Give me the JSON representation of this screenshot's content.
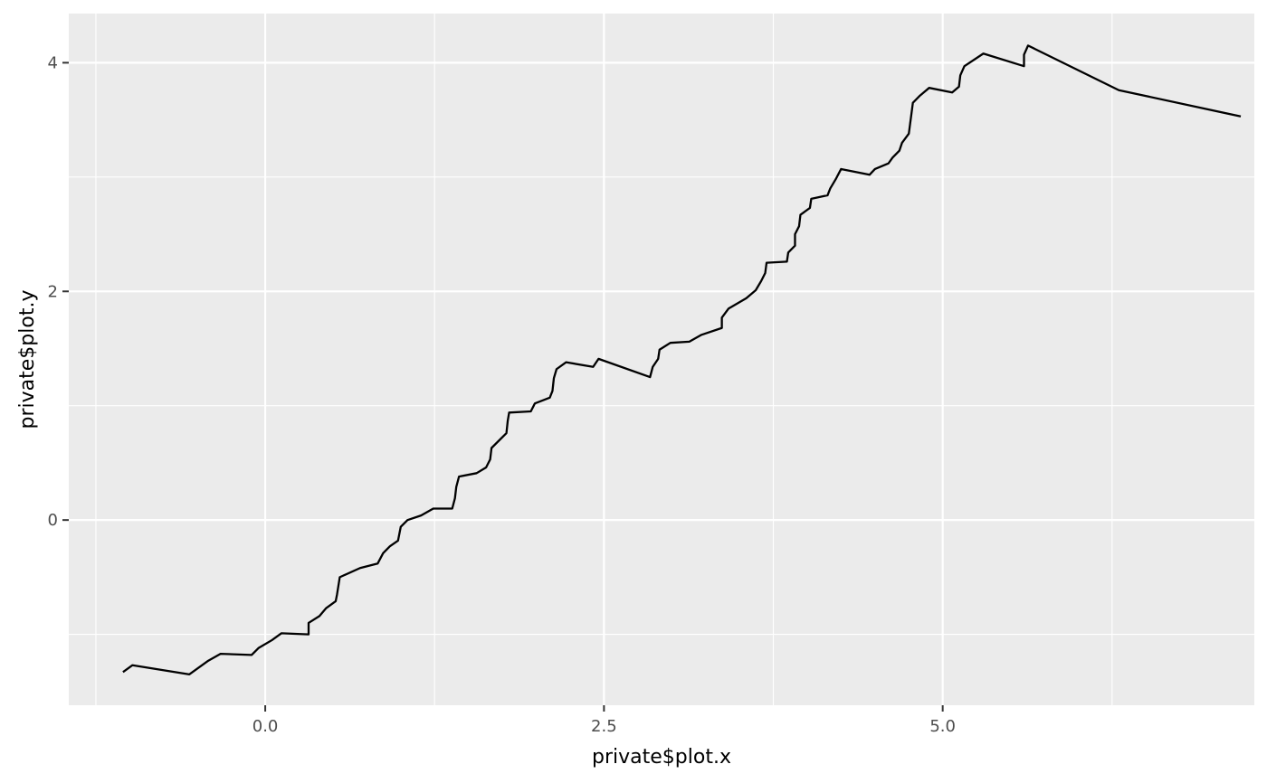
{
  "chart_data": {
    "type": "line",
    "title": "",
    "xlabel": "private$plot.x",
    "ylabel": "private$plot.y",
    "xlim": [
      -1.45,
      7.3
    ],
    "ylim": [
      -1.62,
      4.43
    ],
    "x_ticks": [
      0.0,
      2.5,
      5.0
    ],
    "x_tick_labels": [
      "0.0",
      "2.5",
      "5.0"
    ],
    "x_minor_ticks": [
      -1.25,
      1.25,
      3.75,
      6.25
    ],
    "y_ticks": [
      0,
      2,
      4
    ],
    "y_tick_labels": [
      "0",
      "2",
      "4"
    ],
    "y_minor_ticks": [
      -1,
      1,
      3
    ],
    "grid": true,
    "colors": {
      "panel": "#EBEBEB",
      "grid": "#FFFFFF",
      "line": "#000000",
      "tick_text": "#4D4D4D",
      "axis_title": "#000000"
    },
    "series": [
      {
        "x": [
          -1.05,
          -0.98,
          -0.56,
          -0.42,
          -0.33,
          -0.1,
          -0.05,
          0.05,
          0.12,
          0.32,
          0.32,
          0.4,
          0.45,
          0.52,
          0.53,
          0.55,
          0.7,
          0.83,
          0.87,
          0.92,
          0.98,
          1.0,
          1.05,
          1.15,
          1.24,
          1.38,
          1.4,
          1.41,
          1.43,
          1.56,
          1.63,
          1.66,
          1.67,
          1.78,
          1.79,
          1.8,
          1.96,
          1.99,
          2.1,
          2.12,
          2.13,
          2.15,
          2.22,
          2.42,
          2.46,
          2.84,
          2.86,
          2.9,
          2.91,
          2.99,
          3.13,
          3.22,
          3.37,
          3.37,
          3.42,
          3.55,
          3.62,
          3.66,
          3.69,
          3.7,
          3.85,
          3.86,
          3.91,
          3.91,
          3.94,
          3.95,
          4.02,
          4.03,
          4.15,
          4.17,
          4.21,
          4.25,
          4.46,
          4.5,
          4.6,
          4.63,
          4.68,
          4.7,
          4.75,
          4.76,
          4.78,
          4.83,
          4.9,
          5.07,
          5.12,
          5.13,
          5.16,
          5.3,
          5.6,
          5.6,
          5.63,
          6.3,
          7.2
        ],
        "y": [
          -1.33,
          -1.27,
          -1.35,
          -1.23,
          -1.17,
          -1.18,
          -1.12,
          -1.05,
          -0.99,
          -1.0,
          -0.9,
          -0.84,
          -0.77,
          -0.71,
          -0.65,
          -0.5,
          -0.42,
          -0.38,
          -0.29,
          -0.23,
          -0.18,
          -0.06,
          0.0,
          0.04,
          0.1,
          0.1,
          0.19,
          0.29,
          0.38,
          0.41,
          0.46,
          0.53,
          0.63,
          0.76,
          0.87,
          0.94,
          0.95,
          1.02,
          1.07,
          1.13,
          1.24,
          1.32,
          1.38,
          1.34,
          1.41,
          1.25,
          1.34,
          1.41,
          1.49,
          1.55,
          1.56,
          1.62,
          1.68,
          1.77,
          1.85,
          1.94,
          2.01,
          2.09,
          2.16,
          2.25,
          2.26,
          2.34,
          2.4,
          2.5,
          2.57,
          2.67,
          2.73,
          2.81,
          2.84,
          2.9,
          2.98,
          3.07,
          3.02,
          3.07,
          3.12,
          3.17,
          3.23,
          3.3,
          3.38,
          3.47,
          3.65,
          3.71,
          3.78,
          3.74,
          3.79,
          3.89,
          3.97,
          4.08,
          3.97,
          4.07,
          4.15,
          3.76,
          3.53
        ]
      }
    ]
  }
}
